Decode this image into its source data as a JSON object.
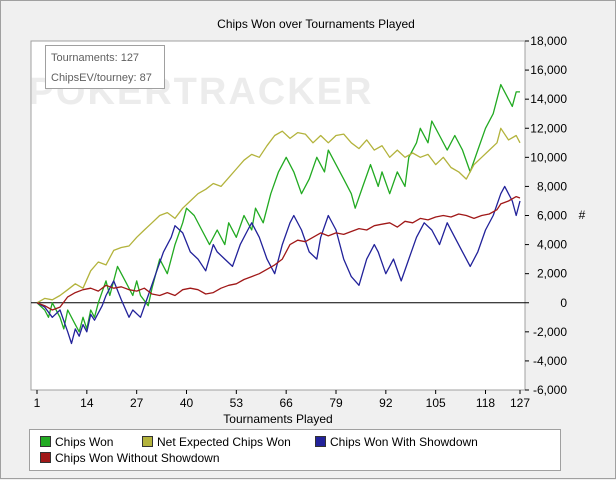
{
  "chart_data": {
    "type": "line",
    "title": "Chips Won over Tournaments Played",
    "xlabel": "Tournaments Played",
    "ylabel": "#",
    "xlim": [
      1,
      127
    ],
    "ylim": [
      -6000,
      18000
    ],
    "x_ticks": [
      1,
      14,
      27,
      40,
      53,
      66,
      79,
      92,
      105,
      118,
      127
    ],
    "y_ticks": [
      -6000,
      -4000,
      -2000,
      0,
      2000,
      4000,
      6000,
      8000,
      10000,
      12000,
      14000,
      16000,
      18000
    ],
    "y_tick_labels": [
      "-6,000",
      "-4,000",
      "-2,000",
      "0",
      "2,000",
      "4,000",
      "6,000",
      "8,000",
      "10,000",
      "12,000",
      "14,000",
      "16,000",
      "18,000"
    ],
    "watermark": "POKERTRACKER",
    "info": {
      "tournaments": "Tournaments: 127",
      "chipsev": "ChipsEV/tourney: 87"
    },
    "series": [
      {
        "name": "Chips Won",
        "color": "#22aa22",
        "points": [
          [
            1,
            0
          ],
          [
            3,
            -500
          ],
          [
            4,
            -1000
          ],
          [
            5,
            0
          ],
          [
            7,
            -1000
          ],
          [
            8,
            -1800
          ],
          [
            9,
            -500
          ],
          [
            11,
            -1500
          ],
          [
            12,
            -2000
          ],
          [
            13,
            -1000
          ],
          [
            14,
            -1800
          ],
          [
            15,
            -500
          ],
          [
            16,
            -1000
          ],
          [
            17,
            0
          ],
          [
            19,
            1500
          ],
          [
            20,
            500
          ],
          [
            22,
            2500
          ],
          [
            24,
            1500
          ],
          [
            26,
            500
          ],
          [
            27,
            1500
          ],
          [
            28,
            500
          ],
          [
            30,
            -200
          ],
          [
            31,
            1000
          ],
          [
            33,
            3000
          ],
          [
            35,
            2000
          ],
          [
            37,
            4000
          ],
          [
            39,
            5500
          ],
          [
            40,
            6500
          ],
          [
            42,
            6000
          ],
          [
            44,
            5000
          ],
          [
            46,
            4000
          ],
          [
            48,
            5000
          ],
          [
            50,
            4000
          ],
          [
            51,
            5500
          ],
          [
            53,
            4500
          ],
          [
            55,
            6000
          ],
          [
            57,
            5000
          ],
          [
            58,
            6500
          ],
          [
            60,
            5500
          ],
          [
            62,
            7500
          ],
          [
            64,
            9000
          ],
          [
            66,
            10000
          ],
          [
            68,
            9000
          ],
          [
            70,
            7500
          ],
          [
            72,
            8500
          ],
          [
            74,
            10000
          ],
          [
            76,
            9000
          ],
          [
            77,
            10500
          ],
          [
            79,
            9500
          ],
          [
            81,
            8500
          ],
          [
            83,
            7500
          ],
          [
            84,
            6500
          ],
          [
            86,
            8000
          ],
          [
            88,
            9500
          ],
          [
            90,
            8000
          ],
          [
            91,
            9000
          ],
          [
            93,
            7500
          ],
          [
            95,
            9000
          ],
          [
            97,
            8000
          ],
          [
            98,
            10000
          ],
          [
            100,
            11000
          ],
          [
            101,
            12000
          ],
          [
            103,
            11000
          ],
          [
            104,
            12500
          ],
          [
            106,
            11500
          ],
          [
            108,
            10500
          ],
          [
            110,
            11500
          ],
          [
            112,
            10500
          ],
          [
            114,
            9000
          ],
          [
            116,
            10500
          ],
          [
            118,
            12000
          ],
          [
            120,
            13000
          ],
          [
            121,
            14000
          ],
          [
            122,
            15000
          ],
          [
            124,
            14000
          ],
          [
            125,
            13500
          ],
          [
            126,
            14500
          ],
          [
            127,
            14500
          ]
        ]
      },
      {
        "name": "Net Expected Chips Won",
        "color": "#b3b33c",
        "points": [
          [
            1,
            0
          ],
          [
            3,
            300
          ],
          [
            5,
            200
          ],
          [
            7,
            500
          ],
          [
            9,
            900
          ],
          [
            11,
            1300
          ],
          [
            13,
            1000
          ],
          [
            15,
            2200
          ],
          [
            17,
            2800
          ],
          [
            19,
            2600
          ],
          [
            21,
            3600
          ],
          [
            23,
            3800
          ],
          [
            25,
            3900
          ],
          [
            27,
            4500
          ],
          [
            29,
            5000
          ],
          [
            31,
            5500
          ],
          [
            33,
            6000
          ],
          [
            35,
            6200
          ],
          [
            37,
            5800
          ],
          [
            39,
            6500
          ],
          [
            41,
            7000
          ],
          [
            43,
            7500
          ],
          [
            45,
            7800
          ],
          [
            47,
            8200
          ],
          [
            49,
            8000
          ],
          [
            51,
            8600
          ],
          [
            53,
            9200
          ],
          [
            55,
            9800
          ],
          [
            57,
            10200
          ],
          [
            59,
            10000
          ],
          [
            61,
            10800
          ],
          [
            63,
            11500
          ],
          [
            65,
            11800
          ],
          [
            67,
            11300
          ],
          [
            69,
            11700
          ],
          [
            71,
            11600
          ],
          [
            73,
            11000
          ],
          [
            75,
            11500
          ],
          [
            77,
            11000
          ],
          [
            79,
            11500
          ],
          [
            81,
            11600
          ],
          [
            83,
            11000
          ],
          [
            85,
            10600
          ],
          [
            87,
            11200
          ],
          [
            89,
            10500
          ],
          [
            91,
            10800
          ],
          [
            93,
            10000
          ],
          [
            95,
            10500
          ],
          [
            97,
            10000
          ],
          [
            99,
            10300
          ],
          [
            101,
            10000
          ],
          [
            103,
            10200
          ],
          [
            105,
            9500
          ],
          [
            107,
            10000
          ],
          [
            109,
            9300
          ],
          [
            111,
            9000
          ],
          [
            113,
            8500
          ],
          [
            115,
            9500
          ],
          [
            117,
            10000
          ],
          [
            119,
            10500
          ],
          [
            121,
            11000
          ],
          [
            122,
            12000
          ],
          [
            124,
            11200
          ],
          [
            126,
            11500
          ],
          [
            127,
            11000
          ]
        ]
      },
      {
        "name": "Chips Won With Showdown",
        "color": "#22229a",
        "points": [
          [
            1,
            0
          ],
          [
            3,
            -300
          ],
          [
            5,
            -1000
          ],
          [
            7,
            -500
          ],
          [
            9,
            -2000
          ],
          [
            10,
            -2800
          ],
          [
            11,
            -1800
          ],
          [
            12,
            -2300
          ],
          [
            13,
            -1500
          ],
          [
            14,
            -2000
          ],
          [
            15,
            -800
          ],
          [
            16,
            -1200
          ],
          [
            18,
            -200
          ],
          [
            19,
            500
          ],
          [
            21,
            1500
          ],
          [
            23,
            200
          ],
          [
            25,
            -1000
          ],
          [
            26,
            -500
          ],
          [
            28,
            -1000
          ],
          [
            30,
            500
          ],
          [
            32,
            2000
          ],
          [
            34,
            3500
          ],
          [
            36,
            4500
          ],
          [
            37,
            5300
          ],
          [
            39,
            4800
          ],
          [
            41,
            3500
          ],
          [
            43,
            3000
          ],
          [
            45,
            2200
          ],
          [
            47,
            4000
          ],
          [
            48,
            3500
          ],
          [
            50,
            3000
          ],
          [
            52,
            2500
          ],
          [
            54,
            4000
          ],
          [
            56,
            5000
          ],
          [
            57,
            5500
          ],
          [
            59,
            4500
          ],
          [
            61,
            3000
          ],
          [
            63,
            2000
          ],
          [
            65,
            4000
          ],
          [
            67,
            5500
          ],
          [
            68,
            6000
          ],
          [
            70,
            5000
          ],
          [
            72,
            3500
          ],
          [
            74,
            3000
          ],
          [
            75,
            4500
          ],
          [
            77,
            6000
          ],
          [
            79,
            5000
          ],
          [
            81,
            3000
          ],
          [
            83,
            1800
          ],
          [
            85,
            1200
          ],
          [
            87,
            3000
          ],
          [
            89,
            4000
          ],
          [
            90,
            3500
          ],
          [
            92,
            2000
          ],
          [
            94,
            3000
          ],
          [
            96,
            1500
          ],
          [
            98,
            3000
          ],
          [
            100,
            4500
          ],
          [
            102,
            5500
          ],
          [
            104,
            5000
          ],
          [
            106,
            4000
          ],
          [
            108,
            5500
          ],
          [
            110,
            4500
          ],
          [
            112,
            3500
          ],
          [
            114,
            2500
          ],
          [
            116,
            3500
          ],
          [
            118,
            5000
          ],
          [
            120,
            6000
          ],
          [
            122,
            7500
          ],
          [
            123,
            8000
          ],
          [
            125,
            7000
          ],
          [
            126,
            6000
          ],
          [
            127,
            7000
          ]
        ]
      },
      {
        "name": "Chips Won Without Showdown",
        "color": "#a01818",
        "points": [
          [
            1,
            0
          ],
          [
            3,
            -200
          ],
          [
            5,
            -500
          ],
          [
            7,
            -300
          ],
          [
            9,
            400
          ],
          [
            11,
            700
          ],
          [
            13,
            900
          ],
          [
            15,
            1000
          ],
          [
            17,
            800
          ],
          [
            19,
            1200
          ],
          [
            21,
            1000
          ],
          [
            23,
            1100
          ],
          [
            25,
            900
          ],
          [
            27,
            800
          ],
          [
            29,
            1000
          ],
          [
            31,
            600
          ],
          [
            33,
            500
          ],
          [
            35,
            700
          ],
          [
            37,
            500
          ],
          [
            39,
            900
          ],
          [
            41,
            1000
          ],
          [
            43,
            900
          ],
          [
            45,
            600
          ],
          [
            47,
            700
          ],
          [
            49,
            1000
          ],
          [
            51,
            1200
          ],
          [
            53,
            1300
          ],
          [
            55,
            1600
          ],
          [
            57,
            1800
          ],
          [
            59,
            2000
          ],
          [
            61,
            2300
          ],
          [
            63,
            2600
          ],
          [
            65,
            3000
          ],
          [
            67,
            4000
          ],
          [
            69,
            4300
          ],
          [
            71,
            4200
          ],
          [
            73,
            4500
          ],
          [
            75,
            4800
          ],
          [
            77,
            4600
          ],
          [
            79,
            4800
          ],
          [
            81,
            4700
          ],
          [
            83,
            4900
          ],
          [
            85,
            5100
          ],
          [
            87,
            5000
          ],
          [
            89,
            5300
          ],
          [
            91,
            5400
          ],
          [
            93,
            5500
          ],
          [
            95,
            5200
          ],
          [
            97,
            5600
          ],
          [
            99,
            5500
          ],
          [
            101,
            5800
          ],
          [
            103,
            5700
          ],
          [
            105,
            5900
          ],
          [
            107,
            6000
          ],
          [
            109,
            5900
          ],
          [
            111,
            6100
          ],
          [
            113,
            6000
          ],
          [
            115,
            5800
          ],
          [
            117,
            6000
          ],
          [
            119,
            6100
          ],
          [
            121,
            6400
          ],
          [
            122,
            6800
          ],
          [
            124,
            7000
          ],
          [
            126,
            7300
          ],
          [
            127,
            7200
          ]
        ]
      }
    ]
  }
}
